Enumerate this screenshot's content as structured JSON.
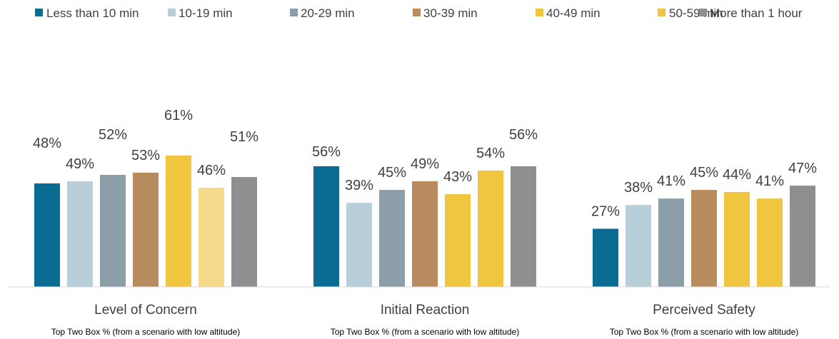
{
  "chart_data": {
    "type": "bar",
    "categories": [
      "Level of Concern",
      "Initial Reaction",
      "Perceived Safety"
    ],
    "category_subtitles": [
      "Top Two Box % (from a scenario with low altitude)",
      "Top Two Box % (from a scenario with low altitude)",
      "Top Two Box % (from a scenario with low altitude)"
    ],
    "series": [
      {
        "name": "Less than 10 min",
        "color": "#0a6b93",
        "values": [
          48,
          56,
          27
        ],
        "labels": [
          "48%",
          "56%",
          "27%"
        ]
      },
      {
        "name": "10-19 min",
        "color": "#b8cfda",
        "values": [
          49,
          39,
          38
        ],
        "labels": [
          "49%",
          "39%",
          "38%"
        ]
      },
      {
        "name": "20-29 min",
        "color": "#8c9fa9",
        "values": [
          52,
          45,
          41
        ],
        "labels": [
          "52%",
          "45%",
          "41%"
        ]
      },
      {
        "name": "30-39 min",
        "color": "#b98c5f",
        "values": [
          53,
          49,
          45
        ],
        "labels": [
          "53%",
          "49%",
          "45%"
        ]
      },
      {
        "name": "40-49 min",
        "color": "#f0c640",
        "values": [
          61,
          43,
          44
        ],
        "labels": [
          "61%",
          "43%",
          "44%"
        ]
      },
      {
        "name": "50-59 min",
        "color": "#f0c640",
        "values": [
          46,
          54,
          41
        ],
        "labels": [
          "46%",
          "54%",
          "41%"
        ],
        "point_colors": [
          "#f5da8c",
          "#f0c640",
          "#f0c640"
        ]
      },
      {
        "name": "More than 1 hour",
        "color": "#8f8f8f",
        "values": [
          51,
          56,
          47
        ],
        "labels": [
          "51%",
          "56%",
          "47%"
        ]
      }
    ],
    "ylim": [
      0,
      100
    ],
    "legend_position": "top",
    "grid": false
  }
}
